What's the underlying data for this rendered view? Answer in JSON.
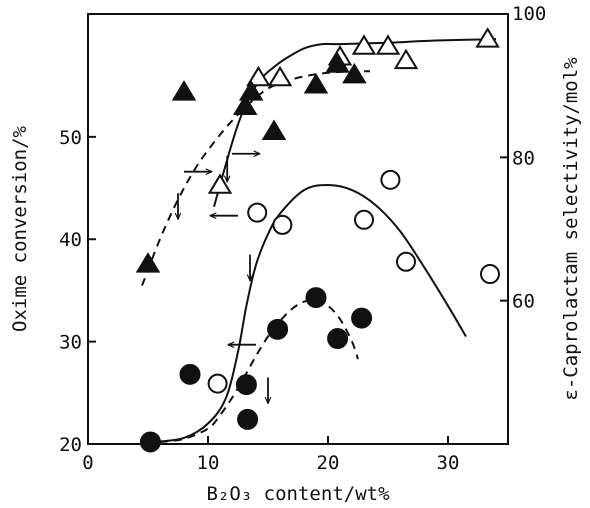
{
  "chart_data": {
    "type": "scatter",
    "xlabel": "B₂O₃ content/wt%",
    "ylabel_left": "Oxime conversion/%",
    "ylabel_right": "ε-Caprolactam selectivity/mol%",
    "xlim": [
      0,
      35
    ],
    "ylim_left": [
      20,
      62
    ],
    "ylim_right": [
      40,
      100
    ],
    "x_ticks": [
      "0",
      "10",
      "20",
      "30"
    ],
    "y_ticks_left": [
      "20",
      "30",
      "40",
      "50"
    ],
    "y_ticks_right": [
      "60",
      "80",
      "100"
    ],
    "series": [
      {
        "marker": "open-circle",
        "axis": "left",
        "x": [
          10.8,
          14.1,
          16.2,
          23.0,
          25.2,
          26.5,
          33.5
        ],
        "y": [
          25.9,
          42.6,
          41.4,
          41.9,
          45.8,
          37.8,
          36.6
        ]
      },
      {
        "marker": "filled-circle",
        "axis": "left",
        "x": [
          5.2,
          8.5,
          13.2,
          13.3,
          15.8,
          19.0,
          20.8,
          22.8
        ],
        "y": [
          20.2,
          26.8,
          25.8,
          22.4,
          31.2,
          34.3,
          30.3,
          32.3
        ]
      },
      {
        "marker": "open-triangle",
        "axis": "right",
        "x": [
          11.0,
          14.2,
          16.0,
          21.0,
          23.0,
          25.0,
          26.5,
          33.3
        ],
        "y": [
          76.1,
          91.1,
          91.1,
          94.0,
          95.5,
          95.5,
          93.5,
          96.5
        ]
      },
      {
        "marker": "filled-triangle",
        "axis": "right",
        "x": [
          5.0,
          8.0,
          13.1,
          13.6,
          15.5,
          19.0,
          20.8,
          22.2
        ],
        "y": [
          65.1,
          89.1,
          87.1,
          89.1,
          83.6,
          90.1,
          93.0,
          91.5
        ]
      }
    ],
    "fits": [
      {
        "axis": "left",
        "style": "solid",
        "x": [
          5.5,
          8,
          10,
          11.5,
          12.5,
          13.2,
          14,
          15,
          16,
          18,
          20,
          22,
          24,
          26,
          28,
          30,
          31.5
        ],
        "y": [
          20.2,
          20.6,
          22.0,
          24.5,
          29,
          33.5,
          37.5,
          40.5,
          42.5,
          44.8,
          45.3,
          44.8,
          43.3,
          40.8,
          37.3,
          33.5,
          30.5
        ]
      },
      {
        "axis": "left",
        "style": "dashed",
        "x": [
          6,
          8,
          10,
          11,
          12,
          13,
          14,
          15,
          16,
          17,
          18,
          19,
          20,
          21,
          22,
          22.5
        ],
        "y": [
          20.2,
          20.5,
          21.5,
          22.8,
          24.5,
          26.5,
          28.6,
          30.5,
          32.0,
          33.2,
          33.9,
          34.0,
          33.5,
          32.2,
          30.0,
          28.3
        ]
      },
      {
        "axis": "right",
        "style": "solid",
        "x": [
          10.5,
          11.5,
          12.5,
          13.5,
          14.5,
          15.5,
          16.5,
          18,
          19.5,
          21,
          25,
          29,
          34
        ],
        "y": [
          73.1,
          79.1,
          84.6,
          88.6,
          91.1,
          92.6,
          93.8,
          95.2,
          95.8,
          95.8,
          96.0,
          96.3,
          96.5
        ]
      },
      {
        "axis": "right",
        "style": "dashed",
        "x": [
          4.5,
          6,
          7.5,
          9,
          10.5,
          12,
          13.5,
          15,
          16.5,
          18,
          20,
          22,
          23.5
        ],
        "y": [
          62.1,
          68.6,
          74.1,
          78.6,
          82.1,
          85.1,
          87.6,
          89.6,
          90.6,
          91.3,
          91.8,
          92.0,
          92.0
        ]
      }
    ],
    "arrows": [
      {
        "axis": "left",
        "x": 12.5,
        "y": 42.3,
        "direction": "left"
      },
      {
        "axis": "left",
        "x": 13.5,
        "y": 38.5,
        "direction": "down"
      },
      {
        "axis": "left",
        "x": 14.0,
        "y": 29.7,
        "direction": "left"
      },
      {
        "axis": "left",
        "x": 15.0,
        "y": 26.5,
        "direction": "down"
      },
      {
        "axis": "right",
        "x": 8.0,
        "y": 78.0,
        "direction": "right"
      },
      {
        "axis": "right",
        "x": 7.5,
        "y": 75.0,
        "direction": "down"
      },
      {
        "axis": "right",
        "x": 12.0,
        "y": 80.5,
        "direction": "right"
      },
      {
        "axis": "right",
        "x": 11.6,
        "y": 80.2,
        "direction": "down"
      }
    ]
  }
}
